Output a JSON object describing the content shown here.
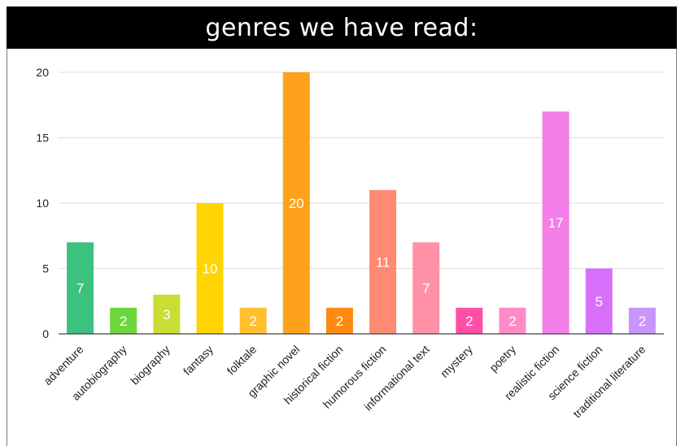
{
  "chart_data": {
    "type": "bar",
    "title": "genres we have read:",
    "xlabel": "",
    "ylabel": "",
    "ylim": [
      0,
      20
    ],
    "yticks": [
      0,
      5,
      10,
      15,
      20
    ],
    "grid": true,
    "categories": [
      "adventure",
      "autobiography",
      "biography",
      "fantasy",
      "folktale",
      "graphic novel",
      "historical fiction",
      "humorous fiction",
      "informational text",
      "mystery",
      "poetry",
      "realistic fiction",
      "science fiction",
      "traditional literature"
    ],
    "values": [
      7,
      2,
      3,
      10,
      2,
      20,
      2,
      11,
      7,
      2,
      2,
      17,
      5,
      2
    ],
    "colors": [
      "#3cc17e",
      "#6dd63c",
      "#c9dd34",
      "#ffd400",
      "#ffbf2f",
      "#ffa11b",
      "#ff8a12",
      "#ff8a73",
      "#ff92a7",
      "#ff4fa6",
      "#ff8cc8",
      "#f47fe8",
      "#d86ffa",
      "#c895fb"
    ]
  },
  "style": {
    "grid_color": "#dddddd",
    "axis_color": "#444444"
  }
}
